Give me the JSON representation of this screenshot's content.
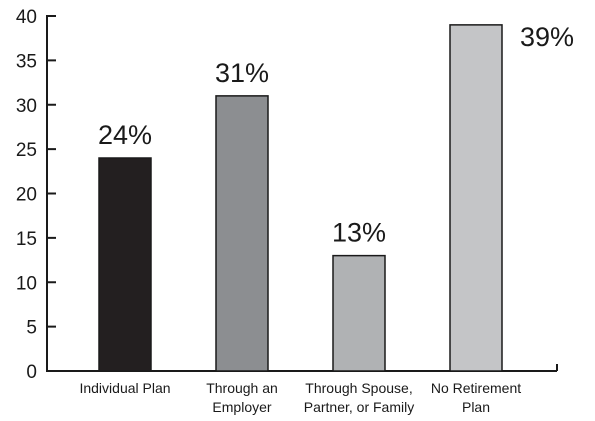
{
  "chart_data": {
    "type": "bar",
    "categories": [
      [
        "Individual Plan"
      ],
      [
        "Through an",
        "Employer"
      ],
      [
        "Through Spouse,",
        "Partner, or Family"
      ],
      [
        "No Retirement",
        "Plan"
      ]
    ],
    "values": [
      24,
      31,
      13,
      39
    ],
    "data_labels": [
      "24%",
      "31%",
      "13%",
      "39%"
    ],
    "bar_colors": [
      "#231f20",
      "#8c8e91",
      "#b0b2b4",
      "#c4c5c7"
    ],
    "ylim": [
      0,
      40
    ],
    "yticks": [
      0,
      5,
      10,
      15,
      20,
      25,
      30,
      35,
      40
    ],
    "grid": false,
    "title": "",
    "xlabel": "",
    "ylabel": ""
  }
}
